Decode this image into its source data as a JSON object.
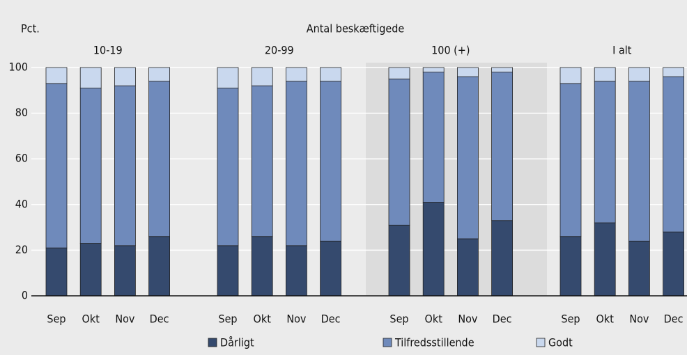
{
  "chart_data": {
    "type": "stacked_bar",
    "title": "Antal beskæftigede",
    "y_label": "Pct.",
    "groups": [
      "10-19",
      "20-99",
      "100 (+)",
      "I alt"
    ],
    "categories": [
      "Sep",
      "Okt",
      "Nov",
      "Dec",
      "Sep",
      "Okt",
      "Nov",
      "Dec",
      "Sep",
      "Okt",
      "Nov",
      "Dec",
      "Sep",
      "Okt",
      "Nov",
      "Dec"
    ],
    "series": [
      {
        "name": "Dårligt",
        "color": "#354a6e",
        "values": [
          21,
          23,
          22,
          26,
          22,
          26,
          22,
          24,
          31,
          41,
          25,
          33,
          26,
          32,
          24,
          28
        ]
      },
      {
        "name": "Tilfredsstillende",
        "color": "#6f8abb",
        "values": [
          72,
          68,
          70,
          68,
          69,
          66,
          72,
          70,
          64,
          57,
          71,
          65,
          67,
          62,
          70,
          68
        ]
      },
      {
        "name": "Godt",
        "color": "#c9d8ee",
        "values": [
          7,
          9,
          8,
          6,
          9,
          8,
          6,
          6,
          5,
          2,
          4,
          2,
          7,
          6,
          6,
          4
        ]
      }
    ],
    "ylim": [
      0,
      100
    ],
    "yticks": [
      0,
      20,
      40,
      60,
      80,
      100
    ],
    "grid": true
  }
}
